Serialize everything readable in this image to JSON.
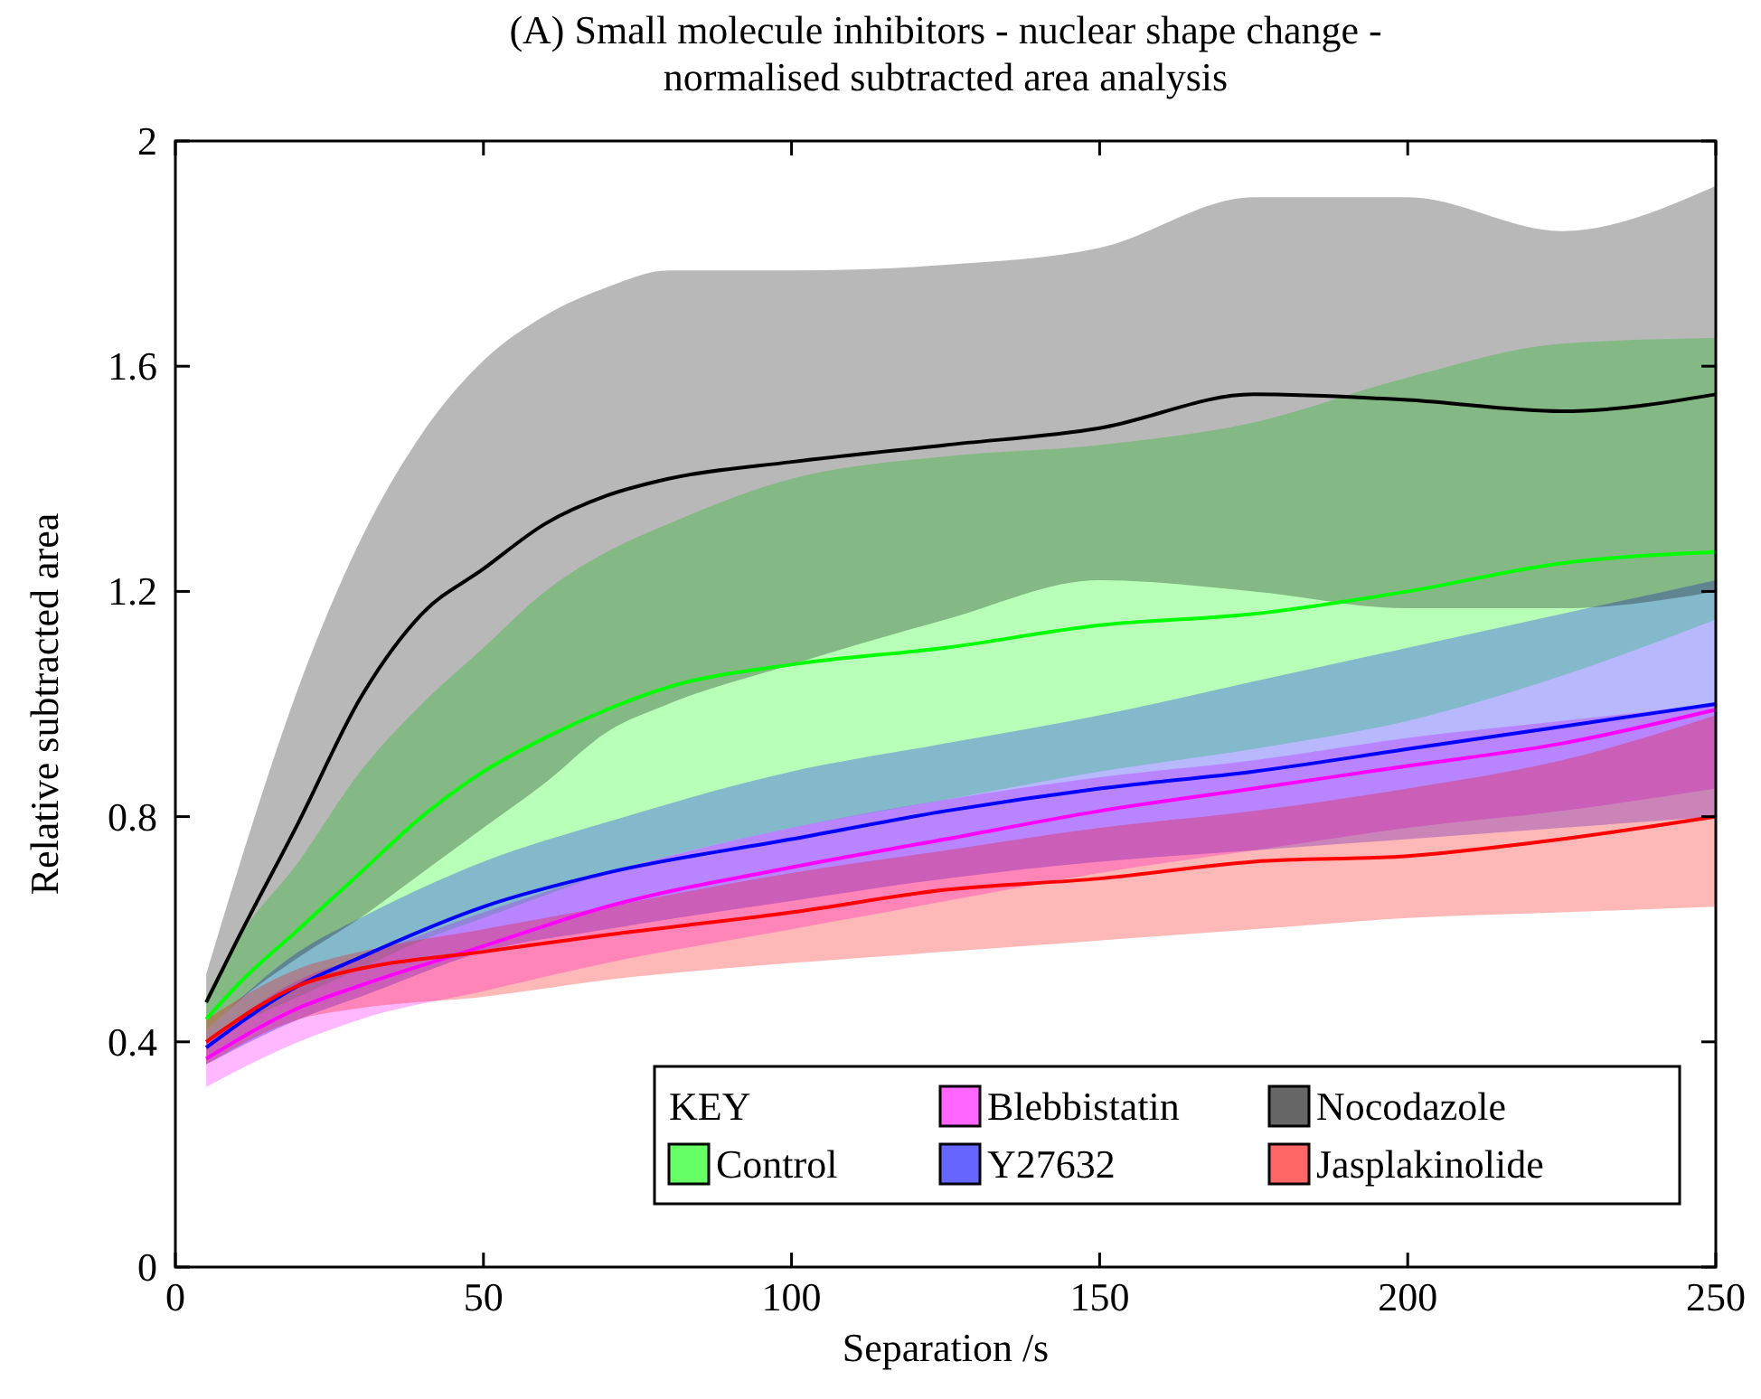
{
  "chart_data": {
    "type": "line",
    "title": "(A) Small molecule inhibitors - nuclear shape change -\nnormalised subtracted area analysis",
    "xlabel": "Separation /s",
    "ylabel": "Relative subtracted area",
    "legend_title": "KEY",
    "legend": "bottom right",
    "xlim": [
      0,
      250
    ],
    "xticks": [
      0,
      50,
      100,
      150,
      200,
      250
    ],
    "ylim": [
      0,
      2
    ],
    "yticks": [
      0,
      0.4,
      0.8,
      1.2,
      1.6,
      2
    ],
    "series": [
      {
        "name": "Control",
        "color": "#00ff00",
        "x": [
          5,
          10,
          20,
          30,
          40,
          50,
          60,
          70,
          80,
          100,
          125,
          150,
          175,
          200,
          225,
          250
        ],
        "values": [
          0.44,
          0.5,
          0.6,
          0.7,
          0.8,
          0.88,
          0.94,
          0.99,
          1.03,
          1.07,
          1.1,
          1.14,
          1.16,
          1.2,
          1.25,
          1.27
        ],
        "upper": [
          0.48,
          0.58,
          0.72,
          0.88,
          1.0,
          1.1,
          1.2,
          1.27,
          1.32,
          1.4,
          1.44,
          1.46,
          1.5,
          1.58,
          1.64,
          1.65
        ],
        "lower": [
          0.4,
          0.43,
          0.48,
          0.53,
          0.58,
          0.62,
          0.66,
          0.7,
          0.73,
          0.78,
          0.83,
          0.88,
          0.92,
          0.97,
          1.05,
          1.15
        ]
      },
      {
        "name": "Blebbistatin",
        "color": "#ff00ff",
        "x": [
          5,
          20,
          30,
          50,
          70,
          100,
          125,
          150,
          175,
          200,
          225,
          250
        ],
        "values": [
          0.37,
          0.46,
          0.5,
          0.57,
          0.64,
          0.71,
          0.76,
          0.81,
          0.85,
          0.89,
          0.93,
          0.99
        ],
        "upper": [
          0.4,
          0.51,
          0.55,
          0.63,
          0.7,
          0.78,
          0.83,
          0.87,
          0.9,
          0.94,
          0.97,
          1.0
        ],
        "lower": [
          0.32,
          0.4,
          0.44,
          0.49,
          0.54,
          0.6,
          0.65,
          0.7,
          0.74,
          0.78,
          0.81,
          0.85
        ]
      },
      {
        "name": "Y27632",
        "color": "#0000ff",
        "x": [
          5,
          20,
          30,
          50,
          70,
          100,
          125,
          150,
          175,
          200,
          225,
          250
        ],
        "values": [
          0.39,
          0.5,
          0.55,
          0.64,
          0.7,
          0.76,
          0.81,
          0.85,
          0.88,
          0.92,
          0.96,
          1.0
        ],
        "upper": [
          0.42,
          0.56,
          0.62,
          0.72,
          0.79,
          0.88,
          0.93,
          0.98,
          1.04,
          1.1,
          1.16,
          1.22
        ],
        "lower": [
          0.36,
          0.44,
          0.48,
          0.56,
          0.6,
          0.65,
          0.69,
          0.72,
          0.74,
          0.76,
          0.78,
          0.8
        ]
      },
      {
        "name": "Nocodazole",
        "color": "#000000",
        "x": [
          5,
          10,
          20,
          30,
          40,
          50,
          60,
          70,
          80,
          100,
          125,
          150,
          175,
          200,
          225,
          250
        ],
        "values": [
          0.47,
          0.58,
          0.79,
          1.01,
          1.16,
          1.24,
          1.32,
          1.37,
          1.4,
          1.43,
          1.46,
          1.49,
          1.55,
          1.54,
          1.52,
          1.55
        ],
        "upper": [
          0.52,
          0.7,
          1.03,
          1.29,
          1.48,
          1.61,
          1.69,
          1.74,
          1.77,
          1.77,
          1.78,
          1.81,
          1.9,
          1.9,
          1.84,
          1.92
        ],
        "lower": [
          0.42,
          0.47,
          0.55,
          0.62,
          0.7,
          0.78,
          0.86,
          0.95,
          1.0,
          1.07,
          1.15,
          1.22,
          1.2,
          1.17,
          1.17,
          1.2
        ]
      },
      {
        "name": "Jasplakinolide",
        "color": "#ff0000",
        "x": [
          5,
          20,
          30,
          50,
          70,
          100,
          125,
          150,
          175,
          200,
          225,
          250
        ],
        "values": [
          0.4,
          0.5,
          0.53,
          0.56,
          0.59,
          0.63,
          0.67,
          0.69,
          0.72,
          0.73,
          0.76,
          0.8
        ],
        "upper": [
          0.44,
          0.53,
          0.56,
          0.6,
          0.64,
          0.7,
          0.74,
          0.78,
          0.81,
          0.85,
          0.9,
          0.98
        ],
        "lower": [
          0.36,
          0.44,
          0.46,
          0.48,
          0.51,
          0.54,
          0.56,
          0.58,
          0.6,
          0.62,
          0.63,
          0.64
        ]
      }
    ]
  }
}
